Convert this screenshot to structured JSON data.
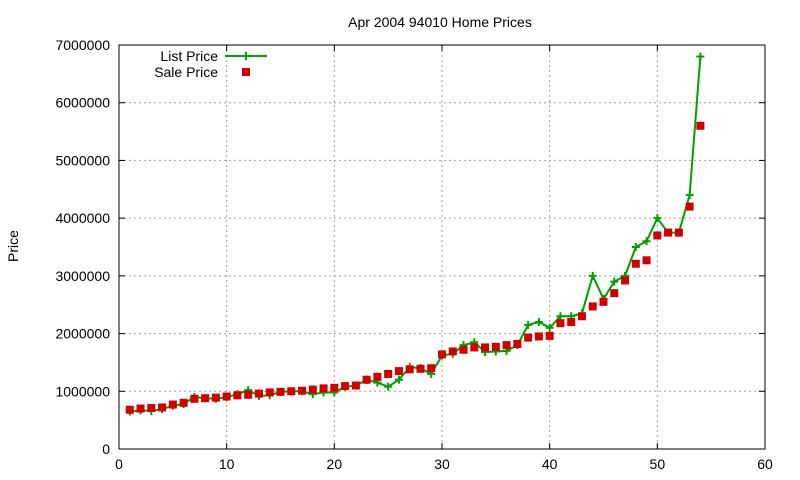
{
  "chart_data": {
    "type": "line",
    "title": "Apr 2004 94010 Home Prices",
    "xlabel": "",
    "ylabel": "Price",
    "xlim": [
      0,
      60
    ],
    "ylim": [
      0,
      7000000
    ],
    "xticks": [
      "0",
      "10",
      "20",
      "30",
      "40",
      "50",
      "60"
    ],
    "yticks": [
      "0",
      "1000000",
      "2000000",
      "3000000",
      "4000000",
      "5000000",
      "6000000",
      "7000000"
    ],
    "grid": true,
    "legend_position": "top-left",
    "x": [
      1,
      2,
      3,
      4,
      5,
      6,
      7,
      8,
      9,
      10,
      11,
      12,
      13,
      14,
      15,
      16,
      17,
      18,
      19,
      20,
      21,
      22,
      23,
      24,
      25,
      26,
      27,
      28,
      29,
      30,
      31,
      32,
      33,
      34,
      35,
      36,
      37,
      38,
      39,
      40,
      41,
      42,
      43,
      44,
      45,
      46,
      47,
      48,
      49,
      50,
      51,
      52,
      53,
      54
    ],
    "series": [
      {
        "name": "List Price",
        "style": "line+cross",
        "color": "#00a000",
        "values": [
          650000,
          670000,
          660000,
          690000,
          750000,
          780000,
          900000,
          880000,
          870000,
          900000,
          950000,
          1020000,
          920000,
          930000,
          990000,
          1000000,
          1000000,
          950000,
          980000,
          980000,
          1080000,
          1100000,
          1200000,
          1150000,
          1080000,
          1200000,
          1420000,
          1400000,
          1300000,
          1620000,
          1650000,
          1800000,
          1850000,
          1680000,
          1690000,
          1700000,
          1800000,
          2150000,
          2200000,
          2100000,
          2300000,
          2300000,
          2350000,
          3000000,
          2600000,
          2900000,
          3000000,
          3500000,
          3600000,
          4000000,
          3750000,
          3750000,
          4400000,
          6800000
        ]
      },
      {
        "name": "Sale Price",
        "style": "square",
        "color": "#d00000",
        "values": [
          680000,
          700000,
          710000,
          720000,
          770000,
          800000,
          870000,
          880000,
          890000,
          910000,
          930000,
          940000,
          960000,
          980000,
          990000,
          1000000,
          1010000,
          1030000,
          1050000,
          1060000,
          1090000,
          1100000,
          1200000,
          1250000,
          1300000,
          1350000,
          1380000,
          1390000,
          1400000,
          1640000,
          1690000,
          1720000,
          1760000,
          1760000,
          1770000,
          1800000,
          1820000,
          1930000,
          1950000,
          1960000,
          2180000,
          2200000,
          2300000,
          2470000,
          2550000,
          2700000,
          2920000,
          3210000,
          3270000,
          3700000,
          3750000,
          3750000,
          4200000,
          5600000
        ]
      }
    ]
  }
}
